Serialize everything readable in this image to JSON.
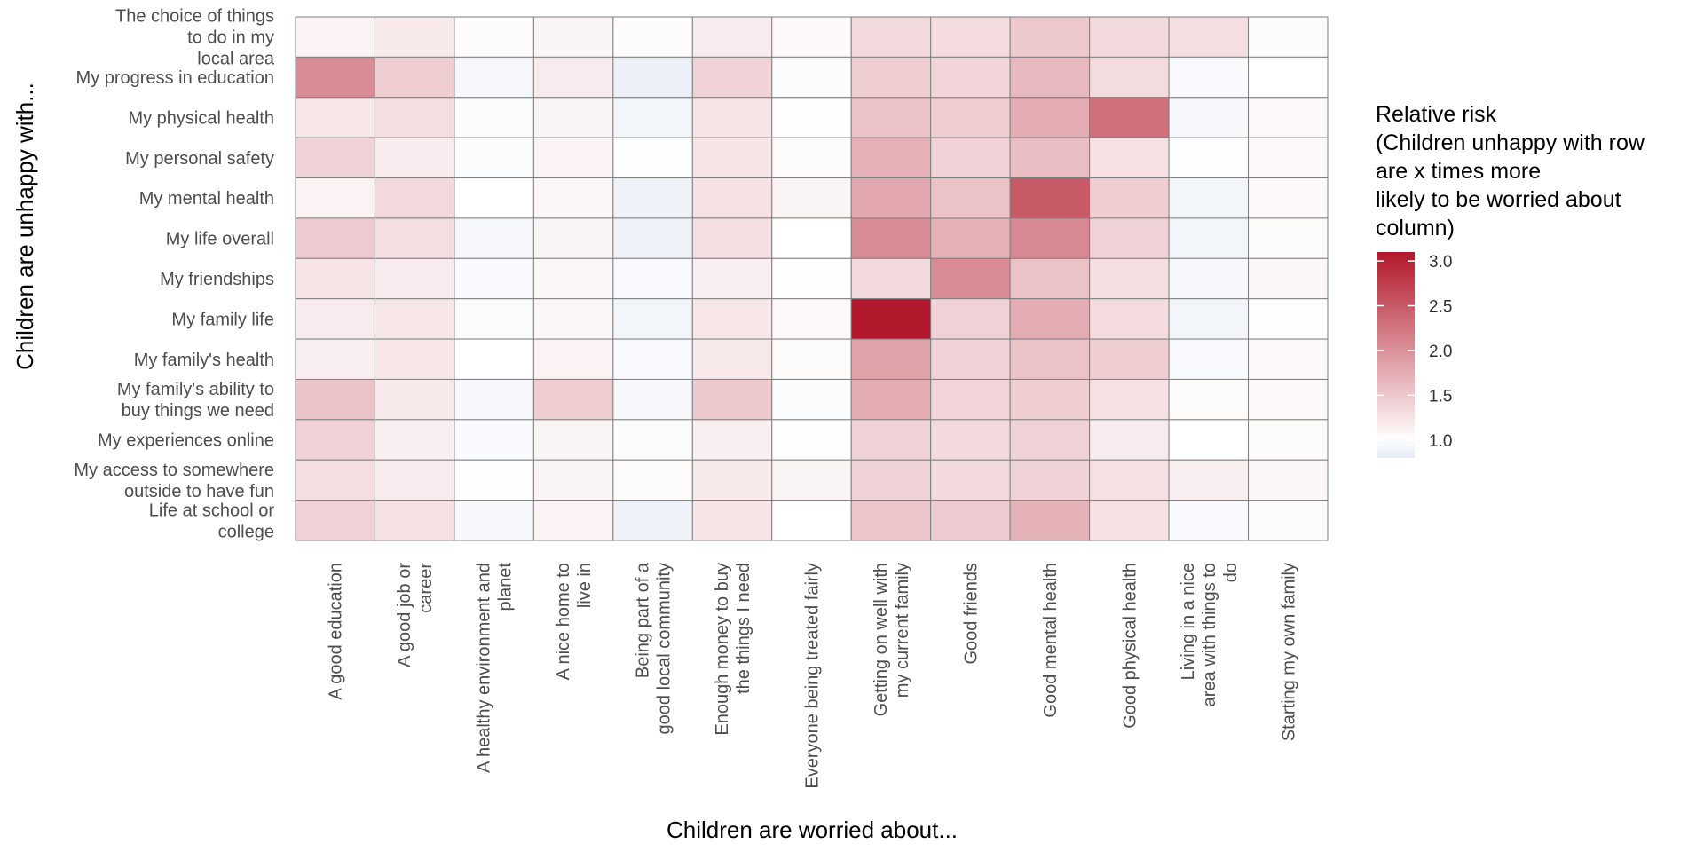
{
  "chart_data": {
    "type": "heatmap",
    "xlabel": "Children are worried about...",
    "ylabel": "Children are unhappy with...",
    "columns": [
      [
        "A good education"
      ],
      [
        "A good job or",
        "career"
      ],
      [
        "A healthy environment and",
        "planet"
      ],
      [
        "A nice home to",
        "live in"
      ],
      [
        "Being part of a",
        "good local community"
      ],
      [
        "Enough money to buy",
        "the things I need"
      ],
      [
        "Everyone being treated fairly"
      ],
      [
        "Getting on well with",
        "my current family"
      ],
      [
        "Good friends"
      ],
      [
        "Good mental health"
      ],
      [
        "Good physical health"
      ],
      [
        "Living in a nice",
        "area with things to",
        "do"
      ],
      [
        "Starting my own family"
      ]
    ],
    "rows": [
      [
        "The choice of things",
        "to do in my",
        "local area"
      ],
      [
        "My progress in education"
      ],
      [
        "My physical health"
      ],
      [
        "My personal safety"
      ],
      [
        "My mental health"
      ],
      [
        "My life overall"
      ],
      [
        "My friendships"
      ],
      [
        "My family life"
      ],
      [
        "My family's health"
      ],
      [
        "My family's ability to",
        "buy things we need"
      ],
      [
        "My experiences online"
      ],
      [
        "My access to somewhere",
        "outside to have fun"
      ],
      [
        "Life at school or",
        "college"
      ]
    ],
    "values": [
      [
        1.12,
        1.2,
        1.04,
        1.1,
        1.04,
        1.18,
        1.07,
        1.35,
        1.33,
        1.5,
        1.35,
        1.3,
        1.05
      ],
      [
        2.05,
        1.45,
        0.92,
        1.18,
        0.85,
        1.4,
        0.97,
        1.45,
        1.38,
        1.65,
        1.32,
        0.95,
        1.0
      ],
      [
        1.22,
        1.3,
        0.97,
        1.1,
        0.9,
        1.25,
        1.03,
        1.55,
        1.45,
        1.75,
        2.3,
        0.93,
        1.07
      ],
      [
        1.4,
        1.17,
        0.97,
        1.12,
        0.98,
        1.25,
        1.05,
        1.72,
        1.42,
        1.6,
        1.28,
        0.98,
        1.06
      ],
      [
        1.12,
        1.35,
        1.0,
        1.08,
        0.88,
        1.28,
        1.1,
        1.8,
        1.55,
        2.5,
        1.45,
        0.9,
        1.06
      ],
      [
        1.48,
        1.3,
        0.92,
        1.1,
        0.88,
        1.3,
        1.0,
        2.05,
        1.7,
        2.08,
        1.4,
        0.9,
        1.05
      ],
      [
        1.25,
        1.18,
        0.95,
        1.08,
        0.95,
        1.15,
        1.02,
        1.35,
        2.05,
        1.55,
        1.3,
        0.93,
        1.08
      ],
      [
        1.18,
        1.22,
        0.96,
        1.08,
        0.9,
        1.22,
        1.06,
        3.1,
        1.42,
        1.75,
        1.33,
        0.9,
        1.02
      ],
      [
        1.15,
        1.22,
        1.0,
        1.12,
        0.95,
        1.2,
        1.05,
        1.85,
        1.42,
        1.55,
        1.45,
        0.95,
        1.07
      ],
      [
        1.55,
        1.2,
        0.93,
        1.45,
        0.93,
        1.5,
        0.97,
        1.75,
        1.38,
        1.45,
        1.28,
        1.05,
        1.06
      ],
      [
        1.42,
        1.15,
        0.95,
        1.1,
        0.97,
        1.15,
        1.02,
        1.4,
        1.35,
        1.4,
        1.18,
        1.0,
        1.05
      ],
      [
        1.3,
        1.18,
        1.02,
        1.1,
        1.05,
        1.2,
        1.1,
        1.4,
        1.35,
        1.4,
        1.28,
        1.15,
        1.08
      ],
      [
        1.42,
        1.28,
        0.93,
        1.12,
        0.88,
        1.25,
        1.0,
        1.52,
        1.48,
        1.7,
        1.28,
        0.95,
        1.05
      ]
    ],
    "legend": {
      "title": [
        "Relative risk",
        "(Children unhappy with row",
        "are x times more",
        "likely to be worried about",
        "column)"
      ],
      "ticks": [
        "3.0",
        "2.5",
        "2.0",
        "1.5",
        "1.0"
      ],
      "tick_values": [
        3.0,
        2.5,
        2.0,
        1.5,
        1.0
      ],
      "range": [
        0.8,
        3.1
      ],
      "placement": "right"
    },
    "colors": {
      "low": "#e5ebf5",
      "mid": "#ffffff",
      "high": "#b2182b",
      "midpoint": 1.0
    }
  }
}
